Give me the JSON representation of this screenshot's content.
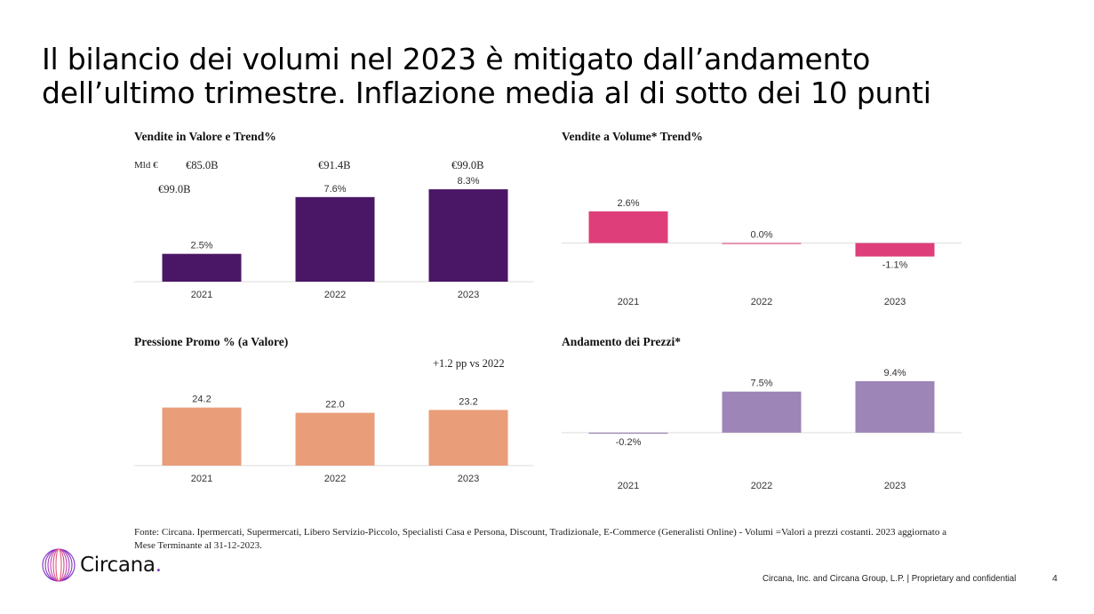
{
  "slide": {
    "title_lines": [
      "Il bilancio dei volumi nel 2023 è mitigato dall’andamento",
      "dell’ultimo trimestre. Inflazione media al di sotto dei 10 punti"
    ],
    "footnote": "Fonte: Circana. Ipermercati, Supermercati, Libero Servizio-Piccolo, Specialisti Casa e Persona, Discount, Tradizionale, E-Commerce (Generalisti Online) - Volumi =Valori a prezzi costanti. 2023 aggiornato a Mese Terminante al 31-12-2023.",
    "logo_text": "Circana",
    "logo_dot": ".",
    "footer_text": "Circana, Inc. and Circana Group, L.P. |  Proprietary and confidential",
    "page_number": "4",
    "colors": {
      "brand_purple": "#7b2fbe"
    }
  },
  "chart_data": [
    {
      "id": "valore",
      "type": "bar",
      "title": "Vendite in Valore e Trend%",
      "unit_label": "Mld €",
      "value_labels": [
        "€85.0B",
        "€91.4B",
        "€99.0B"
      ],
      "extra_label": "€99.0B",
      "categories": [
        "2021",
        "2022",
        "2023"
      ],
      "values": [
        2.5,
        7.6,
        8.3
      ],
      "data_labels": [
        "2.5%",
        "7.6%",
        "8.3%"
      ],
      "color": "#4a1766",
      "xlabel": "",
      "ylabel": "",
      "ylim": [
        0,
        9.5
      ],
      "grid": false,
      "legend": "none"
    },
    {
      "id": "volume",
      "type": "bar",
      "title": "Vendite a Volume* Trend%",
      "categories": [
        "2021",
        "2022",
        "2023"
      ],
      "values": [
        2.6,
        0.0,
        -1.1
      ],
      "data_labels": [
        "2.6%",
        "0.0%",
        "-1.1%"
      ],
      "color": "#de3f7a",
      "xlabel": "",
      "ylabel": "",
      "ylim": [
        -3.6,
        5.5
      ],
      "grid": false,
      "legend": "none"
    },
    {
      "id": "promo",
      "type": "bar",
      "title": "Pressione Promo % (a Valore)",
      "annotation": "+1.2 pp vs 2022",
      "categories": [
        "2021",
        "2022",
        "2023"
      ],
      "values": [
        24.2,
        22.0,
        23.2
      ],
      "data_labels": [
        "24.2",
        "22.0",
        "23.2"
      ],
      "color": "#e99d79",
      "xlabel": "",
      "ylabel": "",
      "ylim": [
        0,
        30
      ],
      "grid": false,
      "legend": "none"
    },
    {
      "id": "prezzi",
      "type": "bar",
      "title": "Andamento dei Prezzi*",
      "categories": [
        "2021",
        "2022",
        "2023"
      ],
      "values": [
        -0.2,
        7.5,
        9.4
      ],
      "data_labels": [
        "-0.2%",
        "7.5%",
        "9.4%"
      ],
      "color": "#9d85b7",
      "xlabel": "",
      "ylabel": "",
      "ylim": [
        -7,
        12
      ],
      "grid": false,
      "legend": "none"
    }
  ]
}
